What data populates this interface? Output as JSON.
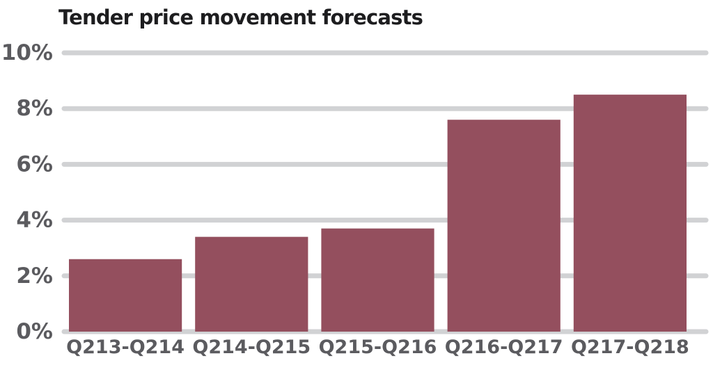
{
  "chart_data": {
    "type": "bar",
    "title": "Tender price movement forecasts",
    "categories": [
      "Q213-Q214",
      "Q214-Q215",
      "Q215-Q216",
      "Q216-Q217",
      "Q217-Q218"
    ],
    "values": [
      2.6,
      3.4,
      3.7,
      7.6,
      8.5
    ],
    "ylim": [
      0,
      10
    ],
    "yticks": [
      0,
      2,
      4,
      6,
      8,
      10
    ],
    "ytick_labels": [
      "0%",
      "2%",
      "4%",
      "6%",
      "8%",
      "10%"
    ],
    "xlabel": "",
    "ylabel": "",
    "grid": true,
    "legend": "none",
    "bar_color": "#944f5e",
    "grid_color": "#d1d2d4",
    "title_color": "#1d1d1f",
    "tick_color": "#5b5b5f"
  }
}
